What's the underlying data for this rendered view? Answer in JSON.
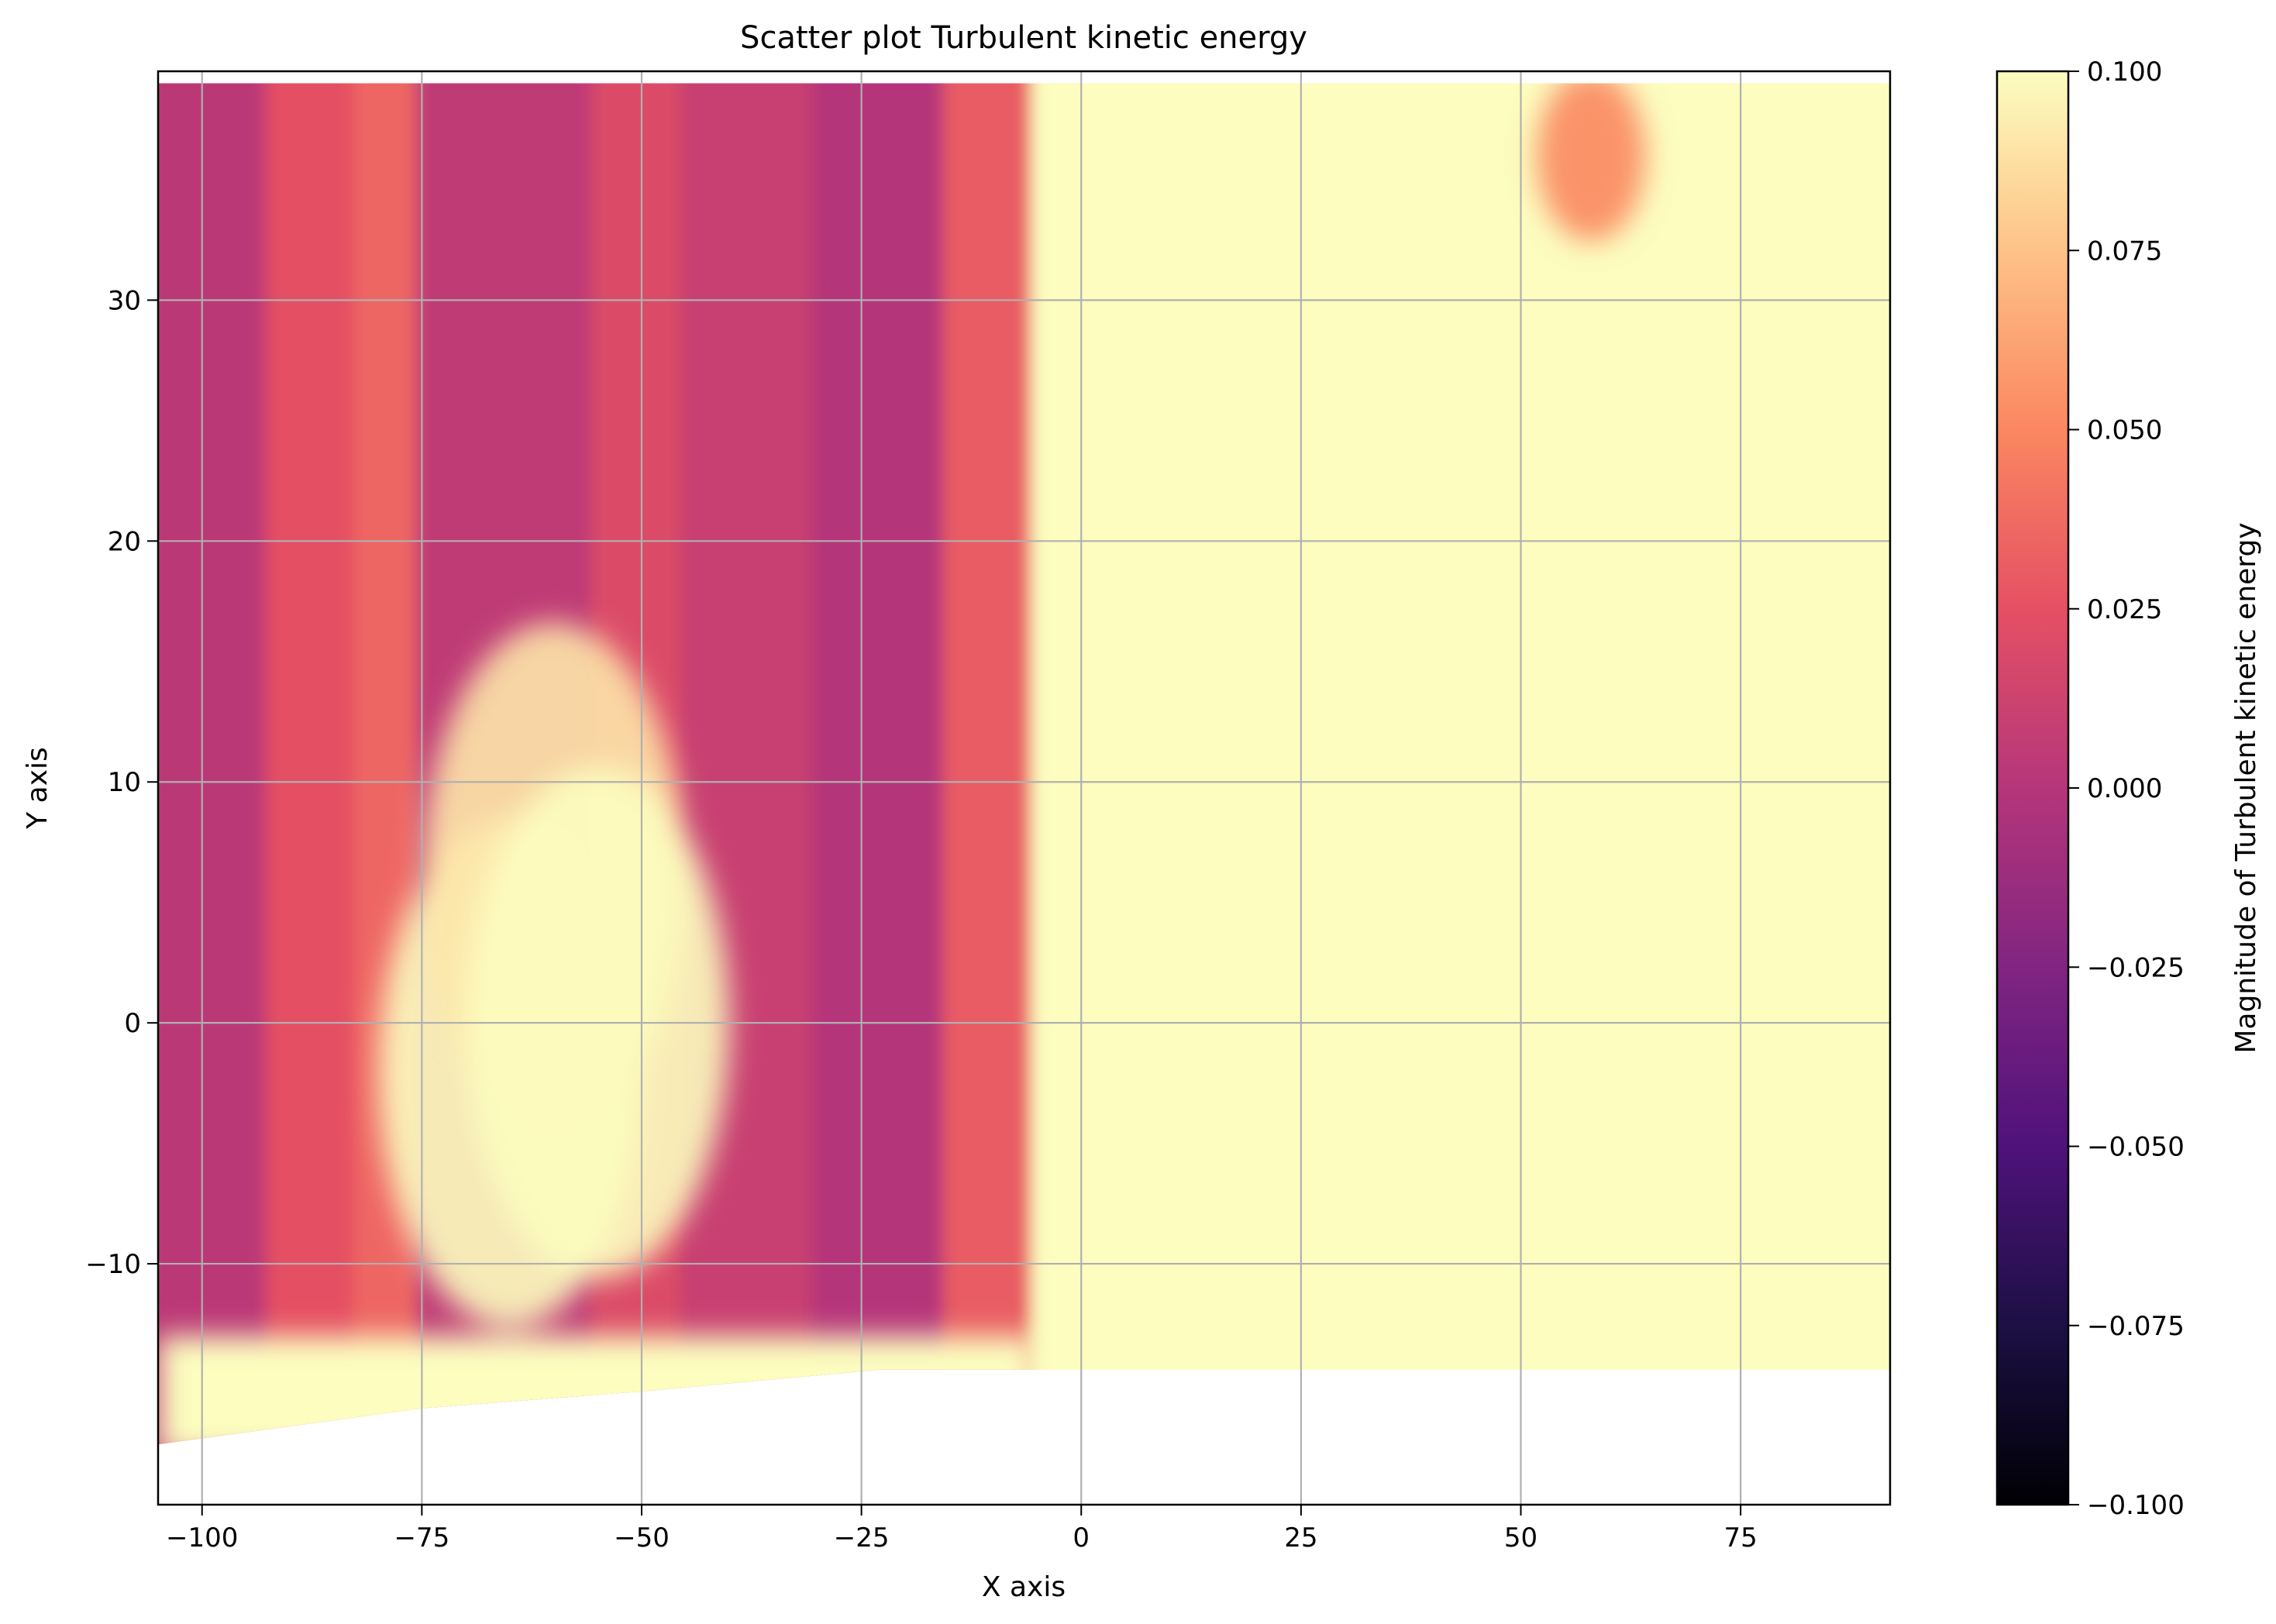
{
  "chart_data": {
    "type": "scatter",
    "title": "Scatter plot Turbulent kinetic energy",
    "xlabel": "X axis",
    "ylabel": "Y axis",
    "xlim": [
      -105,
      92
    ],
    "ylim": [
      -20,
      39.5
    ],
    "xticks": [
      -100,
      -75,
      -50,
      -25,
      0,
      25,
      50,
      75
    ],
    "yticks": [
      -10,
      0,
      10,
      20,
      30
    ],
    "grid": true,
    "colormap": "magma",
    "colorbar": {
      "label": "Magnitude of Turbulent kinetic energy",
      "range": [
        -0.1,
        0.1
      ],
      "ticks": [
        -0.1,
        -0.075,
        -0.05,
        -0.025,
        0.0,
        0.025,
        0.05,
        0.075,
        0.1
      ],
      "tick_labels": [
        "−0.100",
        "−0.075",
        "−0.050",
        "−0.025",
        "0.000",
        "0.025",
        "0.050",
        "0.075",
        "0.100"
      ]
    },
    "domain": {
      "x_range": [
        -105,
        92
      ],
      "y_top": 39,
      "bottom_edge": [
        {
          "x": -105,
          "y": -17.5
        },
        {
          "x": -75,
          "y": -16
        },
        {
          "x": -50,
          "y": -15.3
        },
        {
          "x": -23,
          "y": -14.4
        },
        {
          "x": 92,
          "y": -14.4
        }
      ]
    },
    "regions": [
      {
        "description_value": "mean field by band",
        "bands": [
          {
            "x": [
              -105,
              -92
            ],
            "value": 0.003
          },
          {
            "x": [
              -92,
              -82
            ],
            "value": 0.025
          },
          {
            "x": [
              -82,
              -75
            ],
            "value": 0.035
          },
          {
            "x": [
              -75,
              -55
            ],
            "value": 0.005
          },
          {
            "x": [
              -55,
              -45
            ],
            "value": 0.02
          },
          {
            "x": [
              -45,
              -30
            ],
            "value": 0.01
          },
          {
            "x": [
              -30,
              -15
            ],
            "value": 0.0
          },
          {
            "x": [
              -15,
              -5
            ],
            "value": 0.03
          },
          {
            "x": [
              -5,
              92
            ],
            "value": 0.1
          }
        ]
      }
    ],
    "hot_spots": [
      {
        "x": -65,
        "y": -2,
        "value": 0.1
      },
      {
        "x": -60,
        "y": 6,
        "value": 0.09
      },
      {
        "x": -55,
        "y": 0,
        "value": 0.1
      },
      {
        "x": 58,
        "y": 36,
        "value": 0.05
      }
    ]
  },
  "colors": {
    "cmap_stops": [
      "#000004",
      "#1c1044",
      "#4f127b",
      "#812581",
      "#b5367a",
      "#e55064",
      "#fb8761",
      "#fec287",
      "#fcfdbf"
    ],
    "grid": "#b0b0b0",
    "axes": "#000000"
  }
}
